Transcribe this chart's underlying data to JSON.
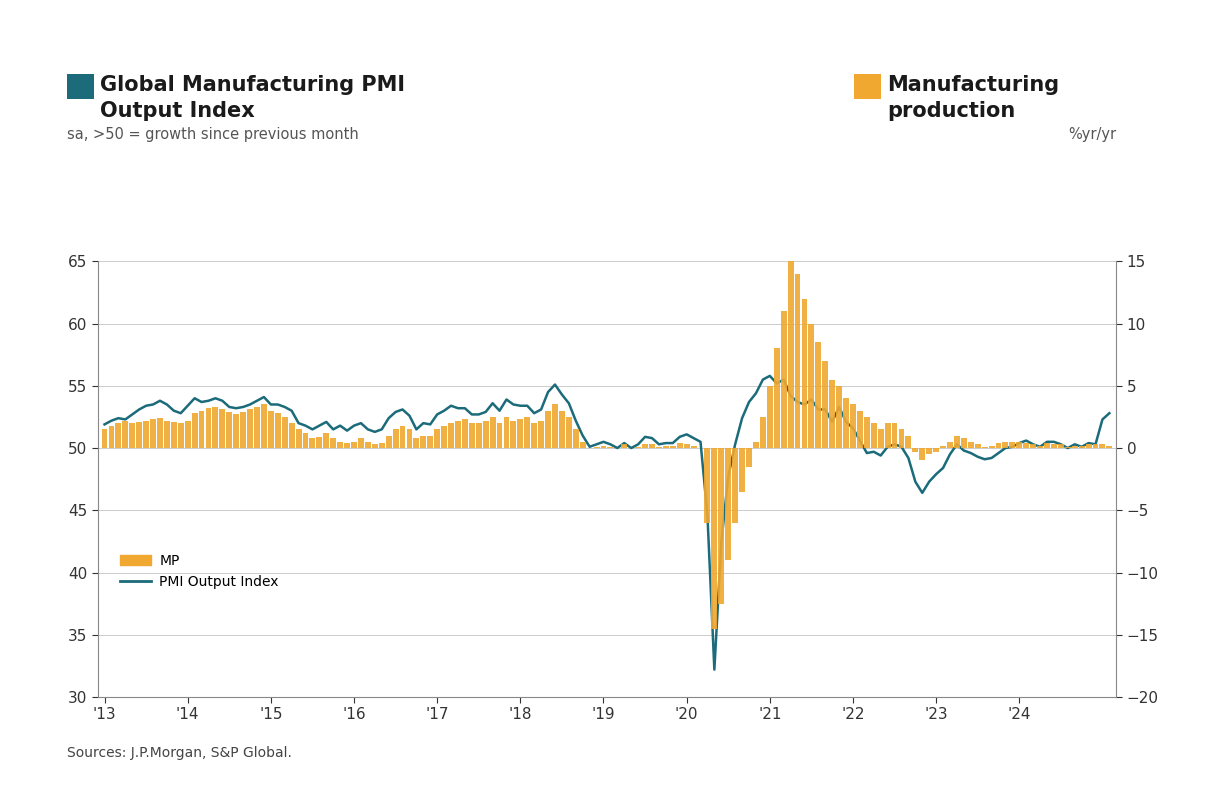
{
  "title_left_line1": "Global Manufacturing PMI",
  "title_left_line2": "Output Index",
  "subtitle_left": "sa, >50 = growth since previous month",
  "title_right_line1": "Manufacturing",
  "title_right_line2": "production",
  "subtitle_right": "%yr/yr",
  "source": "Sources: J.P.Morgan, S&P Global.",
  "legend_mp": "MP",
  "legend_pmi": "PMI Output Index",
  "pmi_color": "#1b6b7b",
  "mp_color": "#f0a830",
  "background_color": "#ffffff",
  "ylim_left": [
    30,
    65
  ],
  "ylim_right": [
    -20,
    15
  ],
  "yticks_left": [
    30,
    35,
    40,
    45,
    50,
    55,
    60,
    65
  ],
  "yticks_right": [
    -20,
    -15,
    -10,
    -5,
    0,
    5,
    10,
    15
  ],
  "pmi_data": [
    51.9,
    52.2,
    52.4,
    52.3,
    52.7,
    53.1,
    53.4,
    53.5,
    53.8,
    53.5,
    53.0,
    52.8,
    53.4,
    54.0,
    53.7,
    53.8,
    54.0,
    53.8,
    53.3,
    53.2,
    53.3,
    53.5,
    53.8,
    54.1,
    53.5,
    53.5,
    53.3,
    53.0,
    52.0,
    51.8,
    51.5,
    51.8,
    52.1,
    51.5,
    51.8,
    51.4,
    51.8,
    52.0,
    51.5,
    51.3,
    51.5,
    52.4,
    52.9,
    53.1,
    52.6,
    51.5,
    52.0,
    51.9,
    52.7,
    53.0,
    53.4,
    53.2,
    53.2,
    52.7,
    52.7,
    52.9,
    53.6,
    53.0,
    53.9,
    53.5,
    53.4,
    53.4,
    52.8,
    53.1,
    54.5,
    55.1,
    54.3,
    53.6,
    52.2,
    51.0,
    50.1,
    50.3,
    50.5,
    50.3,
    50.0,
    50.4,
    50.0,
    50.3,
    50.9,
    50.8,
    50.3,
    50.4,
    50.4,
    50.9,
    51.1,
    50.8,
    50.5,
    44.6,
    32.2,
    42.4,
    47.7,
    50.3,
    52.4,
    53.7,
    54.4,
    55.5,
    55.8,
    55.2,
    55.5,
    54.2,
    53.7,
    53.5,
    53.9,
    53.1,
    53.1,
    52.1,
    53.3,
    52.1,
    51.6,
    50.6,
    49.6,
    49.7,
    49.4,
    50.1,
    50.3,
    50.1,
    49.2,
    47.3,
    46.4,
    47.3,
    47.9,
    48.4,
    49.5,
    50.3,
    49.8,
    49.6,
    49.3,
    49.1,
    49.2,
    49.6,
    50.0,
    50.1,
    50.4,
    50.6,
    50.3,
    50.1,
    50.5,
    50.5,
    50.3,
    50.0,
    50.3,
    50.1,
    50.4,
    50.3,
    52.3,
    52.8
  ],
  "mp_data": [
    1.5,
    1.8,
    2.0,
    2.2,
    2.0,
    2.1,
    2.2,
    2.3,
    2.4,
    2.2,
    2.1,
    2.0,
    2.2,
    2.8,
    3.0,
    3.2,
    3.3,
    3.1,
    2.9,
    2.7,
    2.9,
    3.1,
    3.3,
    3.5,
    3.0,
    2.8,
    2.5,
    2.0,
    1.5,
    1.2,
    0.8,
    0.9,
    1.2,
    0.8,
    0.5,
    0.4,
    0.5,
    0.8,
    0.5,
    0.3,
    0.4,
    1.0,
    1.5,
    1.8,
    1.5,
    0.8,
    1.0,
    1.0,
    1.5,
    1.8,
    2.0,
    2.2,
    2.3,
    2.0,
    2.0,
    2.2,
    2.5,
    2.0,
    2.5,
    2.2,
    2.3,
    2.5,
    2.0,
    2.2,
    3.0,
    3.5,
    3.0,
    2.5,
    1.5,
    0.5,
    0.0,
    0.1,
    0.2,
    0.1,
    0.0,
    0.3,
    0.0,
    0.1,
    0.3,
    0.3,
    0.1,
    0.2,
    0.2,
    0.4,
    0.3,
    0.2,
    0.0,
    -6.0,
    -14.5,
    -12.5,
    -9.0,
    -6.0,
    -3.5,
    -1.5,
    0.5,
    2.5,
    5.0,
    8.0,
    11.0,
    15.0,
    14.0,
    12.0,
    10.0,
    8.5,
    7.0,
    5.5,
    5.0,
    4.0,
    3.5,
    3.0,
    2.5,
    2.0,
    1.5,
    2.0,
    2.0,
    1.5,
    1.0,
    -0.3,
    -1.0,
    -0.5,
    -0.3,
    0.2,
    0.5,
    1.0,
    0.8,
    0.5,
    0.3,
    0.1,
    0.2,
    0.4,
    0.5,
    0.5,
    0.5,
    0.4,
    0.3,
    0.2,
    0.4,
    0.3,
    0.3,
    0.1,
    0.2,
    0.2,
    0.3,
    0.3,
    0.3,
    0.2
  ],
  "xtick_years": [
    "'13",
    "'14",
    "'15",
    "'16",
    "'17",
    "'18",
    "'19",
    "'20",
    "'21",
    "'22",
    "'23",
    "'24"
  ],
  "xtick_positions": [
    0,
    12,
    24,
    36,
    48,
    60,
    72,
    84,
    96,
    108,
    120,
    132
  ]
}
